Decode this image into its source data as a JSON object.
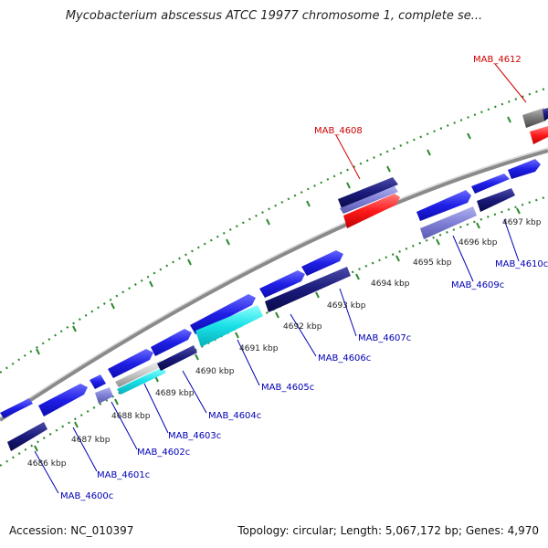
{
  "title": "Mycobacterium abscessus ATCC 19977 chromosome 1, complete se...",
  "accession": "Accession: NC_010397",
  "summary": "Topology: circular; Length: 5,067,172 bp; Genes: 4,970",
  "colors": {
    "forward": "#1f1fe6",
    "reverse": "#1a1a7a",
    "light": "#7f7fd6",
    "cyan": "#18e0e8",
    "highlight": "#ff1a1a",
    "gray": "#7a7a7a",
    "label_blue": "#0000b4",
    "label_red": "#d00000",
    "tick_green": "#2e8b2e"
  },
  "ticks": [
    {
      "label": "4686 kbp"
    },
    {
      "label": "4687 kbp"
    },
    {
      "label": "4688 kbp"
    },
    {
      "label": "4689 kbp"
    },
    {
      "label": "4690 kbp"
    },
    {
      "label": "4691 kbp"
    },
    {
      "label": "4692 kbp"
    },
    {
      "label": "4693 kbp"
    },
    {
      "label": "4694 kbp"
    },
    {
      "label": "4695 kbp"
    },
    {
      "label": "4696 kbp"
    },
    {
      "label": "4697 kbp"
    }
  ],
  "gene_labels": [
    {
      "text": "MAB_4600c",
      "color": "blue"
    },
    {
      "text": "MAB_4601c",
      "color": "blue"
    },
    {
      "text": "MAB_4602c",
      "color": "blue"
    },
    {
      "text": "MAB_4603c",
      "color": "blue"
    },
    {
      "text": "MAB_4604c",
      "color": "blue"
    },
    {
      "text": "MAB_4605c",
      "color": "blue"
    },
    {
      "text": "MAB_4606c",
      "color": "blue"
    },
    {
      "text": "MAB_4607c",
      "color": "blue"
    },
    {
      "text": "MAB_4609c",
      "color": "blue"
    },
    {
      "text": "MAB_4610c",
      "color": "blue"
    },
    {
      "text": "MAB_4608",
      "color": "red"
    },
    {
      "text": "MAB_4612",
      "color": "red"
    }
  ]
}
